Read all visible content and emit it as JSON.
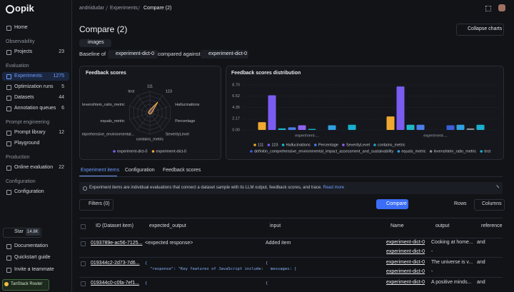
{
  "sidebar": {
    "logo": "opik",
    "home": "Home",
    "sections": [
      {
        "title": "Observability",
        "items": [
          {
            "label": "Projects",
            "count": 23
          }
        ]
      },
      {
        "title": "Evaluation",
        "items": [
          {
            "label": "Experiments",
            "count": 1275,
            "active": true
          },
          {
            "label": "Optimization runs",
            "count": 5
          },
          {
            "label": "Datasets",
            "count": 44
          },
          {
            "label": "Annotation queues",
            "count": 6
          }
        ]
      },
      {
        "title": "Prompt engineering",
        "items": [
          {
            "label": "Prompt library",
            "count": 12
          },
          {
            "label": "Playground"
          }
        ]
      },
      {
        "title": "Production",
        "items": [
          {
            "label": "Online evaluation",
            "count": 22
          }
        ]
      },
      {
        "title": "Configuration",
        "items": [
          {
            "label": "Configuration"
          }
        ]
      }
    ],
    "star": "Star",
    "stars": "14.8K",
    "links": [
      "Documentation",
      "Quickstart guide",
      "Invite a teammate"
    ],
    "router": "TanStack Router"
  },
  "breadcrumb": [
    "andriidudar",
    "Experiments",
    "Compare (2)"
  ],
  "header": {
    "title": "Compare (2)",
    "collapse": "Collapse charts",
    "dataset": "images",
    "baseline_prefix": "Baseline of",
    "baseline": "experiment-dict-0",
    "compared": "compared against",
    "compared_to": "experiment-dict-0"
  },
  "radar": {
    "title": "Feedback scores",
    "axes": [
      "111",
      "123",
      "Hallucinations",
      "Percentage",
      "SeverityLevel",
      "contains_metric",
      "mprehensive_environmental...",
      "equals_metric",
      "levenshtein_ratio_metric",
      "test"
    ],
    "rlim": [
      0,
      1
    ],
    "series": [
      {
        "name": "experiment-dict-0",
        "color": "#7b5cf0",
        "values": [
          0.12,
          0.55,
          0.1,
          0.06,
          0.05,
          0.05,
          0.05,
          0.05,
          0.06,
          0.06
        ]
      },
      {
        "name": "experiment-dict-0",
        "color": "#f0a830",
        "values": [
          0.14,
          0.62,
          0.12,
          0.08,
          0.06,
          0.06,
          0.06,
          0.06,
          0.08,
          0.08
        ]
      }
    ]
  },
  "distribution": {
    "type": "bar",
    "title": "Feedback scores distribution",
    "categories": [
      "experiment-...",
      "experiment-..."
    ],
    "ylim": [
      0,
      8.7
    ],
    "yticks": [
      {
        "value": 0,
        "label": "0.00"
      },
      {
        "value": 2.17,
        "label": "2.17"
      },
      {
        "value": 4.35,
        "label": "4.35"
      },
      {
        "value": 6.52,
        "label": "6.52"
      },
      {
        "value": 8.7,
        "label": "8.70"
      }
    ],
    "series": [
      {
        "name": "111",
        "color": "#f0a830",
        "values": [
          1.5,
          2.6
        ]
      },
      {
        "name": "123",
        "color": "#7b5cf0",
        "values": [
          6.7,
          8.4
        ]
      },
      {
        "name": "Hallucinations",
        "color": "#1fb6c9",
        "values": [
          0.3,
          1.0
        ]
      },
      {
        "name": "Percentage",
        "color": "#4a7de8",
        "values": [
          0.5,
          1.0
        ]
      },
      {
        "name": "SeverityLevel",
        "color": "#8e63f0",
        "values": [
          0.9,
          0
        ]
      },
      {
        "name": "contains_metric",
        "color": "#1aa7c4",
        "values": [
          0.2,
          0
        ]
      },
      {
        "name": "definitin_comprehensive_environmental_impact_assessment_and_sustainability",
        "color": "#3a5fd8",
        "values": [
          0,
          0.9
        ]
      },
      {
        "name": "equals_metric",
        "color": "#2fa0e0",
        "values": [
          0.9,
          1.0
        ]
      },
      {
        "name": "levenshtein_ratio_metric",
        "color": "#8a8f9a",
        "values": [
          0,
          0.3
        ]
      },
      {
        "name": "test",
        "color": "#19b0d0",
        "values": [
          1.0,
          1.0
        ]
      }
    ]
  },
  "tabs": [
    "Experiment items",
    "Configuration",
    "Feedback scores"
  ],
  "banner": {
    "text": "Experiment items are individual evaluations that connect a dataset sample with its LLM output, feedback scores, and trace.",
    "link": "Read more"
  },
  "toolbar": {
    "filters": "Filters (0)",
    "compare": "Compare",
    "rows": "Rows",
    "columns": "Columns"
  },
  "table": {
    "headers": [
      "ID (Dataset item)",
      "expected_output",
      "input",
      "Name",
      "output",
      "reference"
    ],
    "rows": [
      {
        "id": "0193789e-ac56-7125...",
        "expected_output": [
          "<expected response>"
        ],
        "input": [
          "Added item"
        ],
        "names": [
          "experiment-dict-0",
          "experiment-dict-0"
        ],
        "outputs": [
          "Cooking at home...",
          "-"
        ],
        "reference": "and"
      },
      {
        "id": "019344c2-2d73-7d6...",
        "expected_output": [
          "{",
          "\"response\": \"Key features of JavaScript include:"
        ],
        "input": [
          "{",
          "messages: ["
        ],
        "names": [
          "experiment-dict-0",
          "experiment-dict-0"
        ],
        "outputs": [
          "The universe is v...",
          "-"
        ],
        "reference": "and"
      },
      {
        "id": "019344c0-c0fa-7ef1...",
        "expected_output": [
          "{"
        ],
        "input": [
          "{"
        ],
        "names": [
          "experiment-dict-0"
        ],
        "outputs": [
          "A positive minds..."
        ],
        "reference": "and"
      }
    ]
  }
}
